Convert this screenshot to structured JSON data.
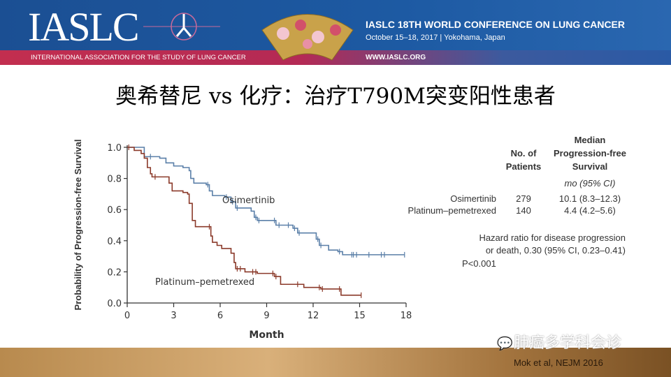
{
  "banner": {
    "logo": "IASLC",
    "organization": "INTERNATIONAL ASSOCIATION FOR THE STUDY OF LUNG CANCER",
    "conference_title": "IASLC 18TH WORLD CONFERENCE ON LUNG CANCER",
    "conference_date": "October 15–18, 2017 | Yokohama, Japan",
    "url": "WWW.IASLC.ORG"
  },
  "slide_title": "奥希替尼 vs 化疗：治疗T790M突变阳性患者",
  "table": {
    "col_patients": "No. of Patients",
    "col_median_1": "Median",
    "col_median_2": "Progression-free",
    "col_median_3": "Survival",
    "units": "mo (95% CI)",
    "rows": [
      {
        "arm": "Osimertinib",
        "n": "279",
        "median": "10.1 (8.3–12.3)"
      },
      {
        "arm": "Platinum–pemetrexed",
        "n": "140",
        "median": "4.4 (4.2–5.6)"
      }
    ],
    "hr_line1": "Hazard ratio for disease progression",
    "hr_line2": "or death, 0.30 (95% CI, 0.23–0.41)",
    "p_value": "P<0.001"
  },
  "chart_data": {
    "type": "line",
    "step": true,
    "xlabel": "Month",
    "ylabel": "Probability of Progression-free Survival",
    "xlim": [
      0,
      18
    ],
    "ylim": [
      0,
      1
    ],
    "xticks": [
      "0",
      "3",
      "6",
      "9",
      "12",
      "15",
      "18"
    ],
    "yticks": [
      "0.0",
      "0.2",
      "0.4",
      "0.6",
      "0.8",
      "1.0"
    ],
    "grid": false,
    "series": [
      {
        "name": "Osimertinib",
        "color": "#5a7fa8",
        "x": [
          0,
          1.1,
          2.1,
          2.5,
          3.0,
          3.6,
          4.0,
          4.1,
          4.3,
          5.1,
          5.3,
          5.5,
          6.3,
          6.7,
          7.0,
          8.0,
          8.2,
          8.4,
          9.6,
          10.7,
          11.0,
          12.2,
          12.4,
          13.0,
          13.6,
          13.9,
          17.9
        ],
        "y": [
          1.0,
          0.94,
          0.93,
          0.9,
          0.88,
          0.87,
          0.85,
          0.8,
          0.77,
          0.76,
          0.72,
          0.69,
          0.68,
          0.65,
          0.61,
          0.59,
          0.55,
          0.53,
          0.5,
          0.48,
          0.45,
          0.41,
          0.37,
          0.34,
          0.33,
          0.31,
          0.31
        ],
        "censored": [
          1.5,
          5.2,
          6.4,
          6.8,
          7.1,
          8.3,
          8.5,
          9.5,
          9.8,
          10.4,
          10.8,
          11.1,
          12.3,
          12.5,
          13.7,
          14.5,
          14.6,
          14.8,
          15.6,
          16.4,
          16.6,
          17.9
        ]
      },
      {
        "name": "Platinum–pemetrexed",
        "color": "#8b3a2a",
        "x": [
          0,
          0.45,
          0.9,
          1.1,
          1.3,
          1.5,
          1.6,
          2.7,
          2.9,
          3.6,
          3.9,
          4.0,
          4.2,
          4.4,
          5.4,
          5.5,
          5.8,
          6.1,
          6.7,
          6.9,
          7.0,
          7.6,
          8.4,
          9.5,
          9.9,
          11.4,
          12.5,
          13.8,
          15.1
        ],
        "y": [
          1.0,
          0.98,
          0.96,
          0.93,
          0.87,
          0.83,
          0.81,
          0.77,
          0.72,
          0.71,
          0.7,
          0.64,
          0.53,
          0.49,
          0.43,
          0.39,
          0.37,
          0.35,
          0.32,
          0.26,
          0.22,
          0.2,
          0.19,
          0.17,
          0.12,
          0.1,
          0.09,
          0.05,
          0.05
        ],
        "censored": [
          0.1,
          1.8,
          5.3,
          7.1,
          7.3,
          8.1,
          8.3,
          9.4,
          9.6,
          11.0,
          12.4,
          12.6,
          13.7,
          15.1
        ]
      }
    ]
  },
  "footer": {
    "citation": "Mok et al, NEJM 2016",
    "watermark": "肺癌多学科会诊"
  }
}
